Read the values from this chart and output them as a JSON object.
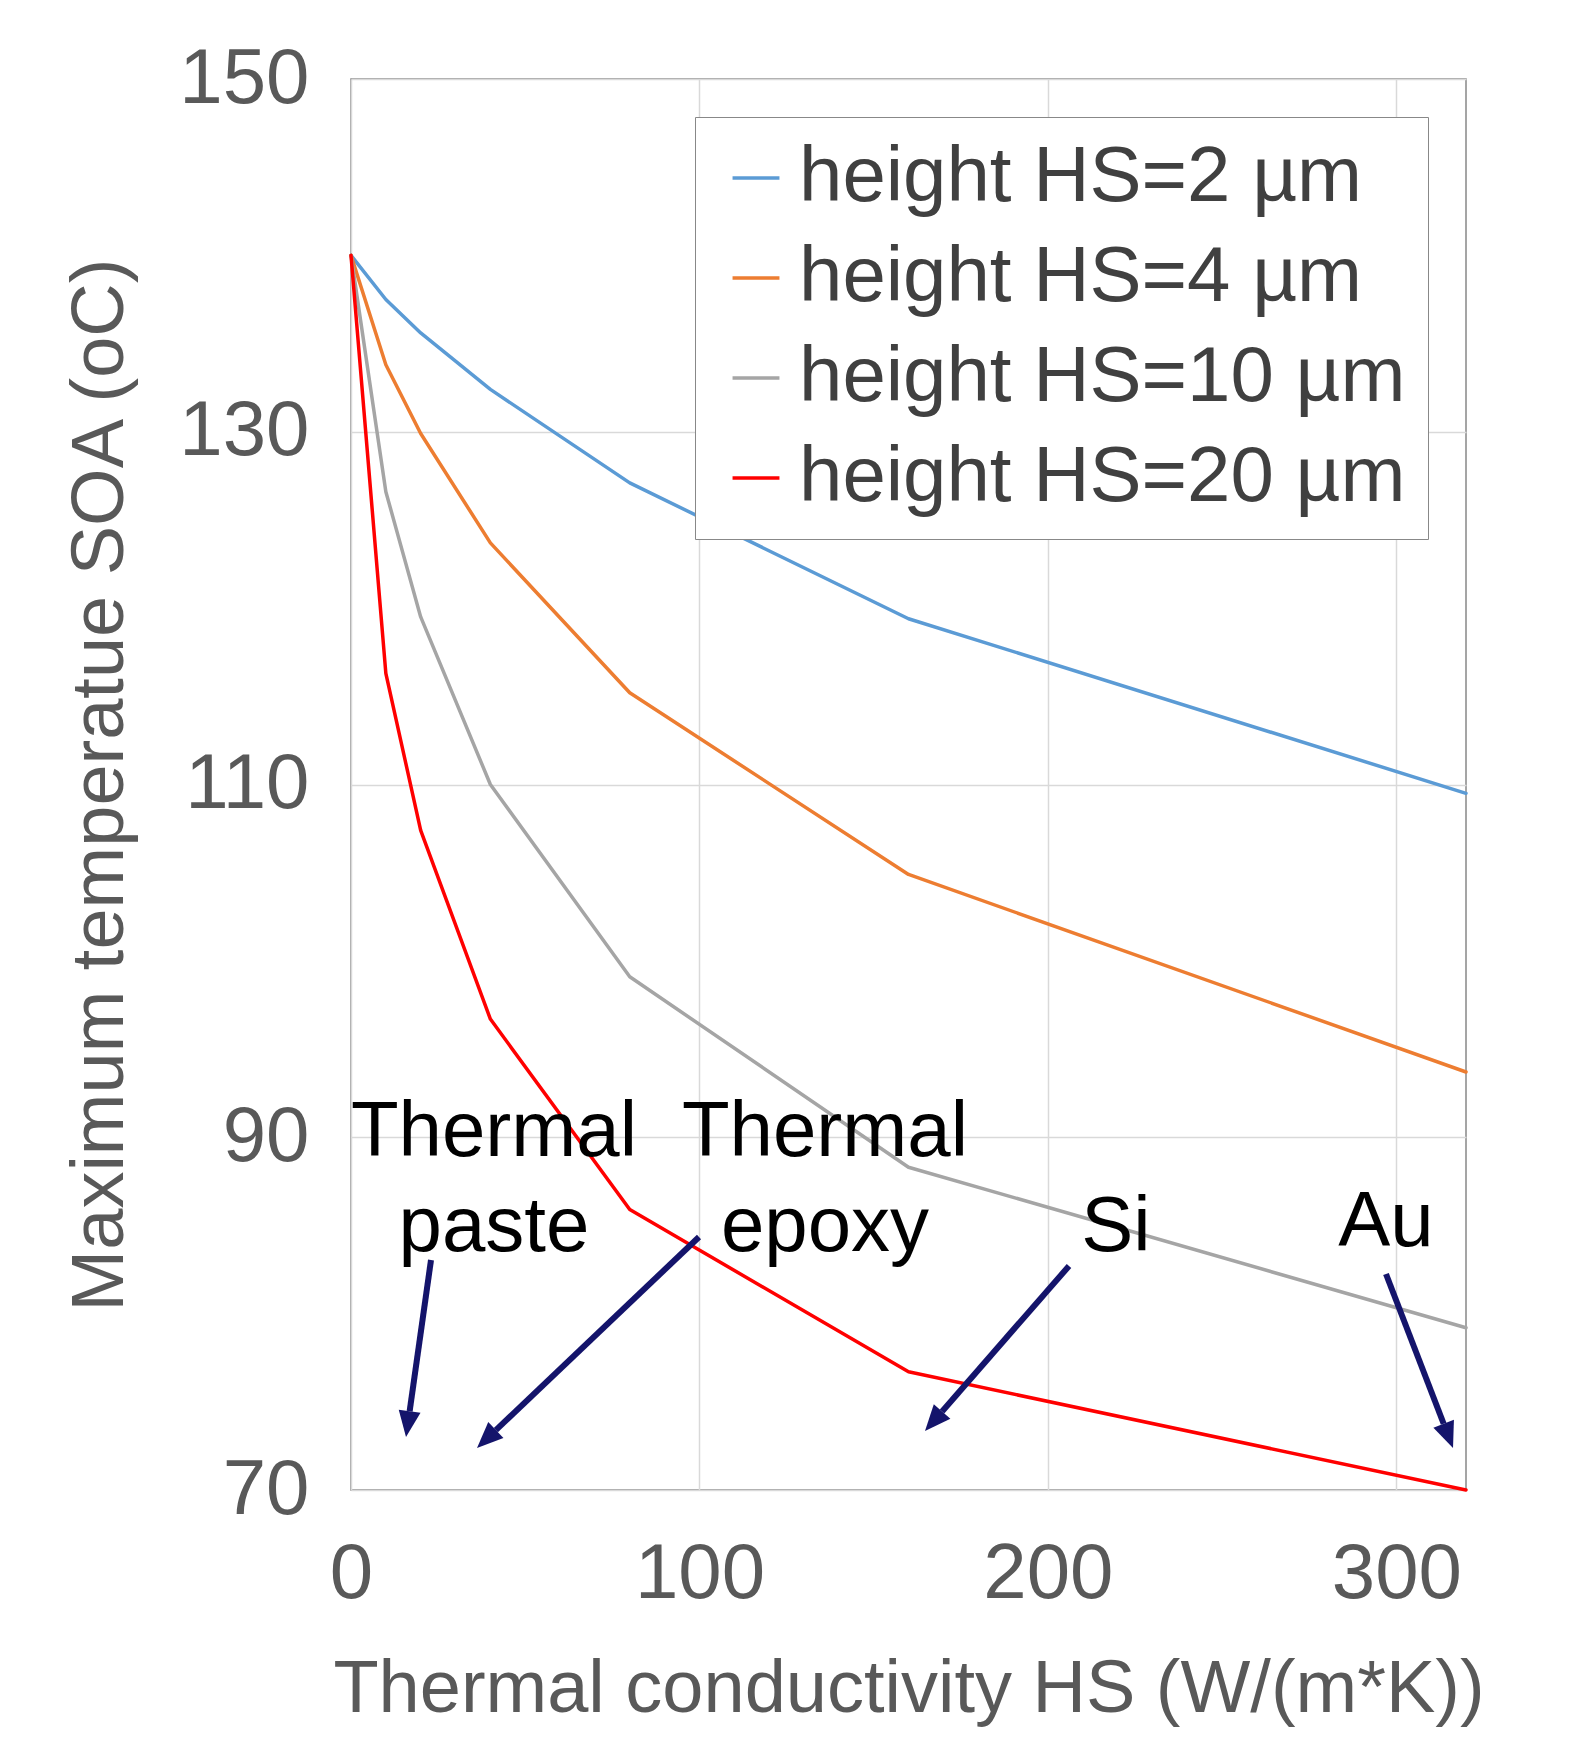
{
  "chart_data": {
    "type": "line",
    "xlabel": "Thermal conductivity HS (W/(m*K))",
    "ylabel": "Maximum temperatue SOA (oC)",
    "x": [
      0,
      10,
      20,
      40,
      80,
      160,
      320
    ],
    "series": [
      {
        "name": "height HS=2 µm",
        "color": "#5b9bd5",
        "values": [
          140,
          137.5,
          135.6,
          132.4,
          127.1,
          119.4,
          109.5
        ]
      },
      {
        "name": "height HS=4 µm",
        "color": "#ed7d31",
        "values": [
          140,
          133.8,
          129.9,
          123.7,
          115.2,
          104.9,
          93.7
        ]
      },
      {
        "name": "height HS=10 µm",
        "color": "#a5a5a5",
        "values": [
          140,
          126.6,
          119.5,
          110,
          99.1,
          88.3,
          79.2
        ]
      },
      {
        "name": "height HS=20 µm",
        "color": "#ff0000",
        "values": [
          140,
          116.3,
          107.4,
          96.7,
          85.9,
          76.7,
          70
        ]
      }
    ],
    "xlim": [
      0,
      320
    ],
    "xticks": [
      0,
      100,
      200,
      300
    ],
    "ylim": [
      70,
      150
    ],
    "yticks": [
      70,
      90,
      110,
      130,
      150
    ],
    "grid": true,
    "legend": "top right",
    "marker": "none",
    "line_style": "solid",
    "annotations": [
      "Thermal\npaste",
      "Thermal\nepoxy",
      "Si",
      "Au"
    ]
  }
}
